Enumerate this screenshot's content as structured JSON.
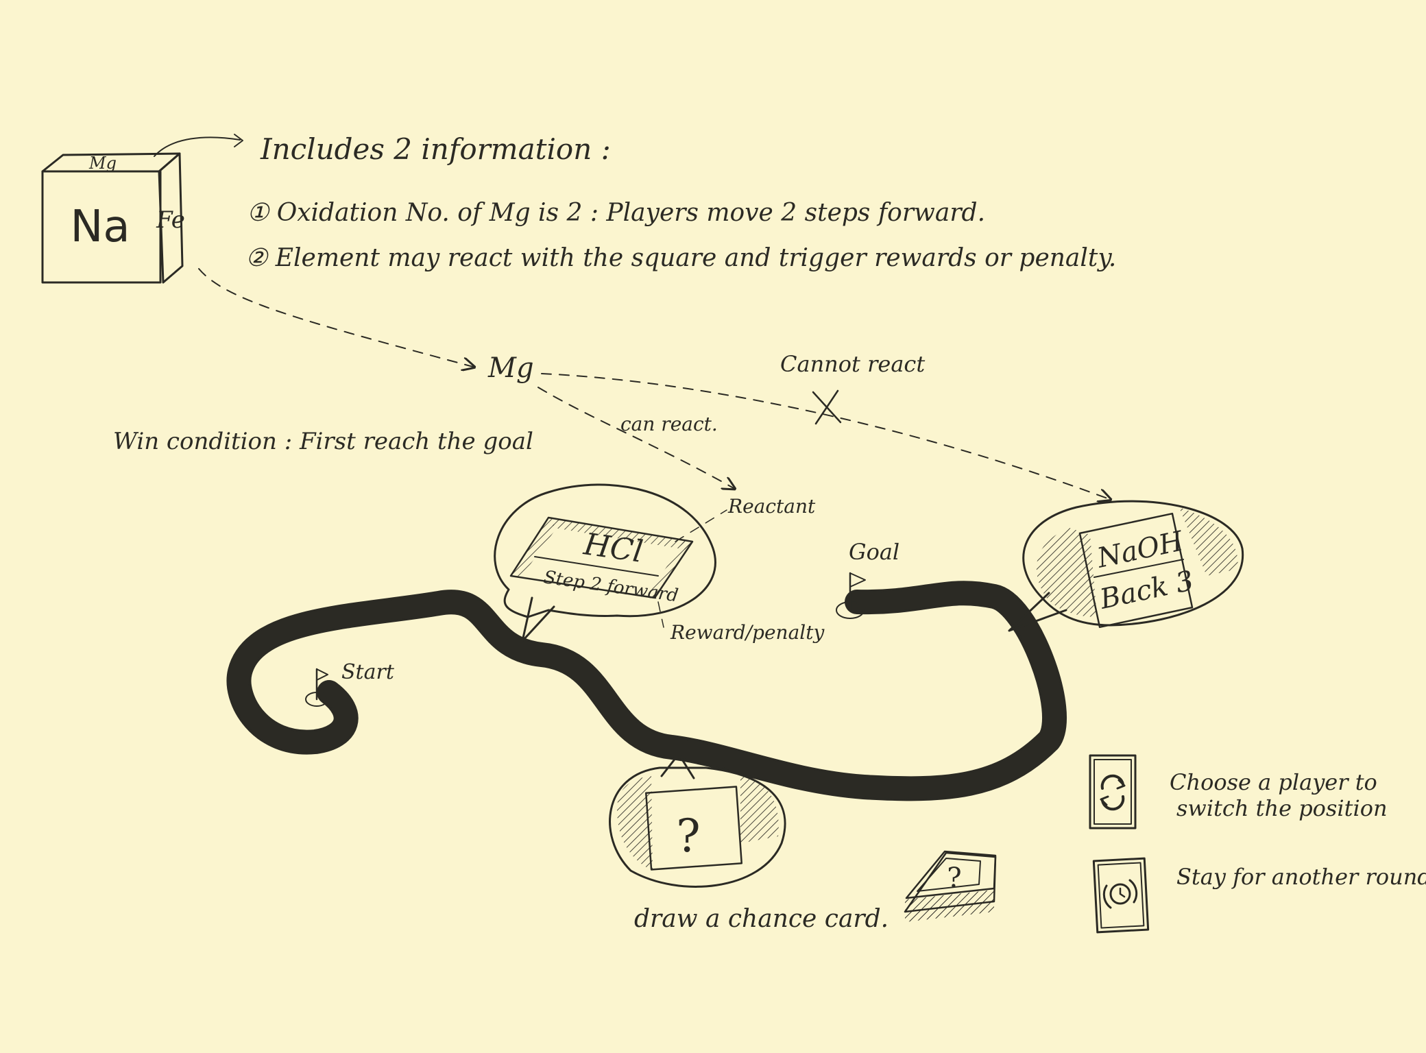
{
  "dice": {
    "front": "Na",
    "top": "Mg",
    "side": "Fe"
  },
  "info": {
    "heading": "Includes 2 information :",
    "item1": "① Oxidation No. of Mg is 2 : Players move 2 steps forward.",
    "item2": "② Element may react with the square and trigger rewards or penalty."
  },
  "reaction": {
    "element": "Mg",
    "can_react": "can react.",
    "cannot_react": "Cannot react"
  },
  "win_condition": "Win condition : First reach the goal",
  "board": {
    "start": "Start",
    "goal": "Goal"
  },
  "square_hcl": {
    "reactant": "HCl",
    "reward": "Step 2 forward",
    "label_reactant": "Reactant",
    "label_reward": "Reward/penalty"
  },
  "square_naoh": {
    "reactant": "NaOH",
    "penalty": "Back 3"
  },
  "chance": {
    "symbol": "?",
    "caption": "draw a chance card."
  },
  "cards": {
    "switch": "Choose a player to switch the position",
    "stay": "Stay for another round"
  },
  "colors": {
    "paper": "#fbf5cf",
    "ink": "#2b2a24"
  }
}
